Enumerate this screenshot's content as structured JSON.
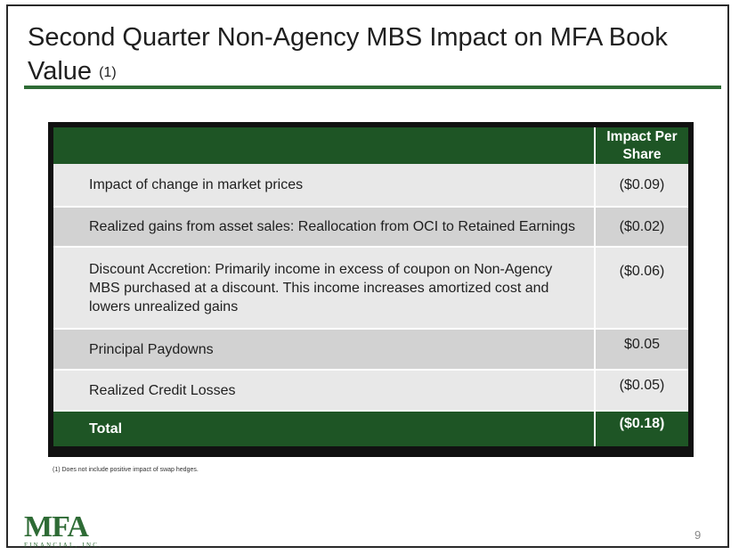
{
  "slide": {
    "title": "Second Quarter Non-Agency MBS Impact on MFA Book Value",
    "title_superscript": "(1)",
    "footnote": "(1) Does not include positive impact of swap hedges.",
    "page_number": "9",
    "logo": {
      "mark": "MFA",
      "sub": "FINANCIAL, INC."
    }
  },
  "table": {
    "header": {
      "description": "",
      "value": "Impact Per Share"
    },
    "rows": [
      {
        "description": "Impact of change in market prices",
        "value": "($0.09)"
      },
      {
        "description": "Realized gains from asset sales: Reallocation from OCI to Retained Earnings",
        "value": "($0.02)"
      },
      {
        "description": "Discount Accretion: Primarily income in excess of coupon on Non-Agency MBS purchased at a discount. This income increases amortized cost and lowers unrealized gains",
        "value": "($0.06)"
      },
      {
        "description": "Principal Paydowns",
        "value": "$0.05"
      },
      {
        "description": "Realized Credit Losses",
        "value": "($0.05)"
      }
    ],
    "total": {
      "description": "Total",
      "value": "($0.18)"
    }
  },
  "colors": {
    "header_green": "#1e5525",
    "rule_green": "#2e6b35",
    "row_light": "#e8e8e8",
    "row_dark": "#d2d2d2"
  }
}
